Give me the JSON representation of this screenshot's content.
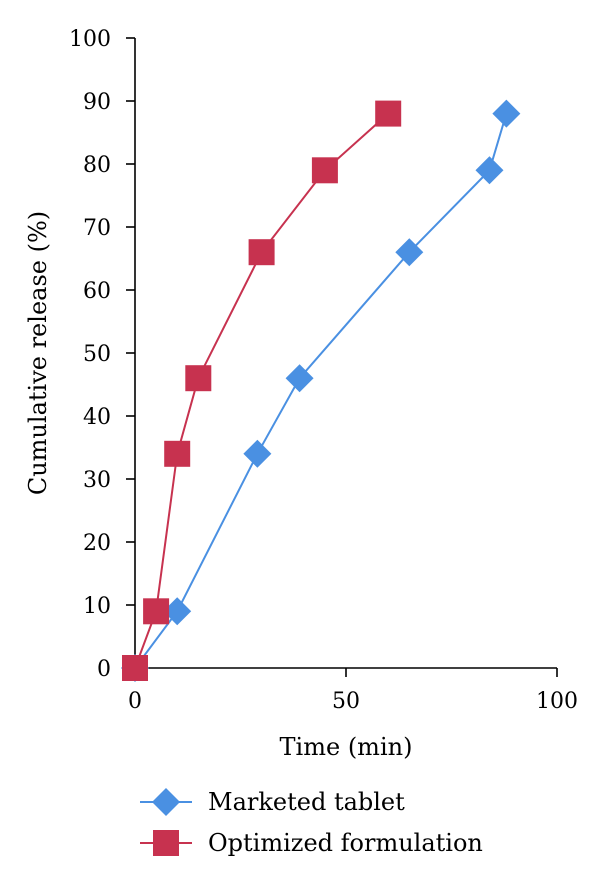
{
  "chart_data": {
    "type": "line",
    "title": "",
    "xlabel": "Time (min)",
    "ylabel": "Cumulative release (%)",
    "xlim": [
      0,
      100
    ],
    "ylim": [
      0,
      100
    ],
    "xticks": [
      0,
      50,
      100
    ],
    "yticks": [
      0,
      10,
      20,
      30,
      40,
      50,
      60,
      70,
      80,
      90,
      100
    ],
    "grid": false,
    "legend": "bottom",
    "series": [
      {
        "name": "Marketed tablet",
        "color": "#4a90e2",
        "marker": "diamond",
        "x": [
          0,
          10,
          29,
          39,
          65,
          84,
          88
        ],
        "y": [
          0,
          9,
          34,
          46,
          66,
          79,
          88
        ]
      },
      {
        "name": "Optimized formulation",
        "color": "#c7324f",
        "marker": "square",
        "x": [
          0,
          5,
          10,
          15,
          30,
          45,
          60
        ],
        "y": [
          0,
          9,
          34,
          46,
          66,
          79,
          88
        ]
      }
    ]
  }
}
